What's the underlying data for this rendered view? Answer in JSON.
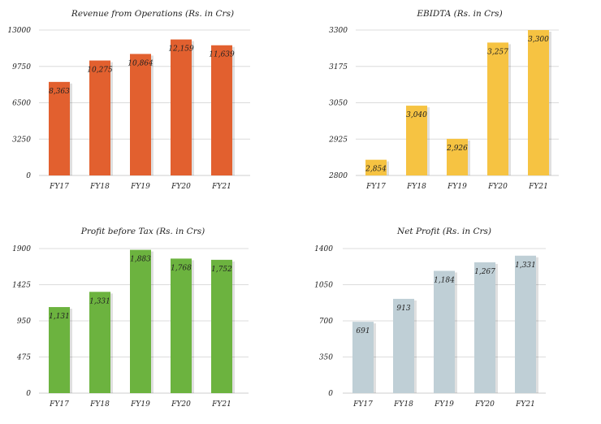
{
  "chart_data": [
    {
      "type": "bar",
      "title": "Revenue from Operations (Rs. in Crs)",
      "categories": [
        "FY17",
        "FY18",
        "FY19",
        "FY20",
        "FY21"
      ],
      "values": [
        8363,
        10275,
        10864,
        12159,
        11639
      ],
      "value_labels": [
        "8,363",
        "10,275",
        "10,864",
        "12,159",
        "11,639"
      ],
      "yticks": [
        0,
        3250,
        6500,
        9750,
        13000
      ],
      "ylim": [
        0,
        13000
      ],
      "color": "#E2602F"
    },
    {
      "type": "bar",
      "title": "EBIDTA (Rs. in Crs)",
      "categories": [
        "FY17",
        "FY18",
        "FY19",
        "FY20",
        "FY21"
      ],
      "values": [
        2854,
        3040,
        2926,
        3257,
        3300
      ],
      "value_labels": [
        "2,854",
        "3,040",
        "2,926",
        "3,257",
        "3,300"
      ],
      "yticks": [
        2800,
        2925,
        3050,
        3175,
        3300
      ],
      "ylim": [
        2800,
        3300
      ],
      "color": "#F6C342"
    },
    {
      "type": "bar",
      "title": "Profit before Tax (Rs. in Crs)",
      "categories": [
        "FY17",
        "FY18",
        "FY19",
        "FY20",
        "FY21"
      ],
      "values": [
        1131,
        1331,
        1883,
        1768,
        1752
      ],
      "value_labels": [
        "1,131",
        "1,331",
        "1,883",
        "1,768",
        "1,752"
      ],
      "yticks": [
        0,
        475,
        950,
        1425,
        1900
      ],
      "ylim": [
        0,
        1900
      ],
      "color": "#6CB33F"
    },
    {
      "type": "bar",
      "title": "Net Profit (Rs. in Crs)",
      "categories": [
        "FY17",
        "FY18",
        "FY19",
        "FY20",
        "FY21"
      ],
      "values": [
        691,
        913,
        1184,
        1267,
        1331
      ],
      "value_labels": [
        "691",
        "913",
        "1,184",
        "1,267",
        "1,331"
      ],
      "yticks": [
        0,
        350,
        700,
        1050,
        1400
      ],
      "ylim": [
        0,
        1400
      ],
      "color": "#BFCFD6"
    }
  ]
}
